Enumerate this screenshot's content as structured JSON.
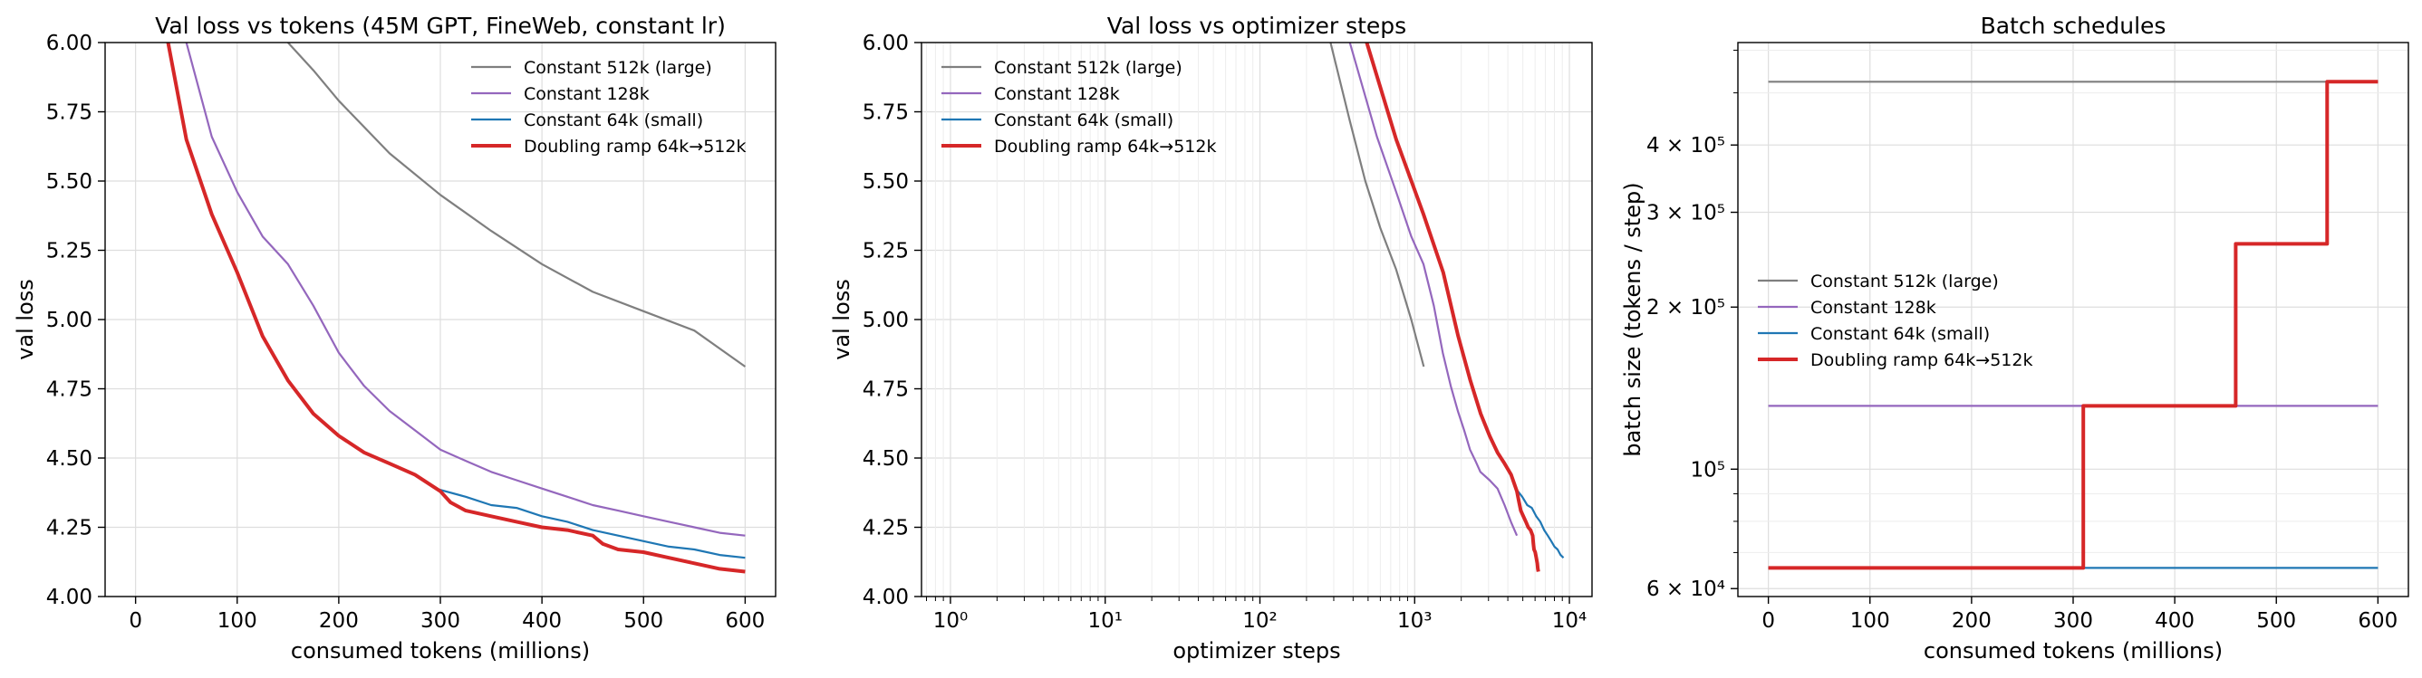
{
  "chart_data": [
    {
      "type": "line",
      "title": "Val loss vs tokens (45M GPT, FineWeb, constant lr)",
      "xlabel": "consumed tokens (millions)",
      "ylabel": "val loss",
      "xlim": [
        -30,
        630
      ],
      "ylim": [
        4.0,
        6.0
      ],
      "xscale": "linear",
      "yscale": "linear",
      "xticks": [
        0,
        100,
        200,
        300,
        400,
        500,
        600
      ],
      "xtick_labels": [
        "0",
        "100",
        "200",
        "300",
        "400",
        "500",
        "600"
      ],
      "yticks": [
        4.0,
        4.25,
        4.5,
        4.75,
        5.0,
        5.25,
        5.5,
        5.75,
        6.0
      ],
      "ytick_labels": [
        "4.00",
        "4.25",
        "4.50",
        "4.75",
        "5.00",
        "5.25",
        "5.50",
        "5.75",
        "6.00"
      ],
      "grid": true,
      "legend_position": "top-right",
      "series": [
        {
          "name": "Constant 512k (large)",
          "color": "#7f7f7f",
          "width": 2.2,
          "x": [
            150,
            175,
            200,
            250,
            300,
            350,
            400,
            450,
            500,
            550,
            600
          ],
          "y": [
            6.0,
            5.9,
            5.79,
            5.6,
            5.45,
            5.32,
            5.2,
            5.1,
            5.03,
            4.96,
            4.83
          ]
        },
        {
          "name": "Constant 128k",
          "color": "#9467bd",
          "width": 2.2,
          "x": [
            50,
            75,
            100,
            125,
            150,
            175,
            200,
            225,
            250,
            275,
            300,
            325,
            350,
            375,
            400,
            425,
            450,
            475,
            500,
            525,
            550,
            575,
            600
          ],
          "y": [
            6.0,
            5.66,
            5.46,
            5.3,
            5.2,
            5.05,
            4.88,
            4.76,
            4.67,
            4.6,
            4.53,
            4.49,
            4.45,
            4.42,
            4.39,
            4.36,
            4.33,
            4.31,
            4.29,
            4.27,
            4.25,
            4.23,
            4.22
          ]
        },
        {
          "name": "Constant 64k (small)",
          "color": "#1f77b4",
          "width": 2.2,
          "x": [
            295,
            325,
            350,
            375,
            400,
            425,
            450,
            475,
            500,
            525,
            550,
            575,
            600
          ],
          "y": [
            4.39,
            4.36,
            4.33,
            4.32,
            4.29,
            4.27,
            4.24,
            4.22,
            4.2,
            4.18,
            4.17,
            4.15,
            4.14
          ]
        },
        {
          "name": "Doubling ramp 64k→512k",
          "color": "#d62728",
          "width": 4.0,
          "x": [
            32,
            50,
            75,
            100,
            125,
            150,
            175,
            200,
            225,
            250,
            275,
            300,
            310,
            325,
            350,
            375,
            400,
            425,
            450,
            460,
            475,
            500,
            525,
            550,
            575,
            600
          ],
          "y": [
            6.0,
            5.65,
            5.38,
            5.17,
            4.94,
            4.78,
            4.66,
            4.58,
            4.52,
            4.48,
            4.44,
            4.38,
            4.34,
            4.31,
            4.29,
            4.27,
            4.25,
            4.24,
            4.22,
            4.19,
            4.17,
            4.16,
            4.14,
            4.12,
            4.1,
            4.09
          ]
        }
      ]
    },
    {
      "type": "line",
      "title": "Val loss vs optimizer steps",
      "xlabel": "optimizer steps",
      "ylabel": "val loss",
      "xlim": [
        0.65,
        14000
      ],
      "ylim": [
        4.0,
        6.0
      ],
      "xscale": "log",
      "yscale": "linear",
      "xticks": [
        1,
        10,
        100,
        1000,
        10000
      ],
      "xtick_labels": [
        "10⁰",
        "10¹",
        "10²",
        "10³",
        "10⁴"
      ],
      "yticks": [
        4.0,
        4.25,
        4.5,
        4.75,
        5.0,
        5.25,
        5.5,
        5.75,
        6.0
      ],
      "ytick_labels": [
        "4.00",
        "4.25",
        "4.50",
        "4.75",
        "5.00",
        "5.25",
        "5.50",
        "5.75",
        "6.00"
      ],
      "grid": true,
      "legend_position": "top-left",
      "series": [
        {
          "name": "Constant 512k (large)",
          "color": "#7f7f7f",
          "width": 2.2,
          "x": [
            286,
            380,
            480,
            600,
            760,
            950,
            1145
          ],
          "y": [
            6.0,
            5.72,
            5.5,
            5.33,
            5.18,
            5.0,
            4.83
          ]
        },
        {
          "name": "Constant 128k",
          "color": "#9467bd",
          "width": 2.2,
          "x": [
            381,
            570,
            760,
            950,
            1140,
            1330,
            1520,
            1710,
            1900,
            2090,
            2280,
            2470,
            2660,
            3050,
            3430,
            3810,
            4190,
            4580
          ],
          "y": [
            6.0,
            5.66,
            5.46,
            5.3,
            5.2,
            5.05,
            4.88,
            4.76,
            4.67,
            4.6,
            4.53,
            4.49,
            4.45,
            4.42,
            4.39,
            4.33,
            4.27,
            4.22
          ]
        },
        {
          "name": "Constant 64k (small)",
          "color": "#1f77b4",
          "width": 2.2,
          "x": [
            4500,
            4960,
            5340,
            5720,
            6100,
            6480,
            6870,
            7250,
            7630,
            8010,
            8390,
            8770,
            9160
          ],
          "y": [
            4.39,
            4.36,
            4.33,
            4.32,
            4.29,
            4.27,
            4.24,
            4.22,
            4.2,
            4.18,
            4.17,
            4.15,
            4.14
          ]
        },
        {
          "name": "Doubling ramp 64k→512k",
          "color": "#d62728",
          "width": 4.0,
          "x": [
            490,
            760,
            1140,
            1530,
            1910,
            2290,
            2670,
            3050,
            3430,
            3810,
            4200,
            4580,
            4730,
            4850,
            5040,
            5230,
            5420,
            5610,
            5790,
            5850,
            5910,
            6010,
            6110,
            6200,
            6250,
            6300
          ],
          "y": [
            6.0,
            5.65,
            5.38,
            5.17,
            4.94,
            4.78,
            4.66,
            4.58,
            4.52,
            4.48,
            4.44,
            4.38,
            4.34,
            4.31,
            4.29,
            4.27,
            4.25,
            4.24,
            4.22,
            4.19,
            4.17,
            4.16,
            4.14,
            4.12,
            4.1,
            4.09
          ]
        }
      ]
    },
    {
      "type": "line",
      "title": "Batch schedules",
      "xlabel": "consumed tokens (millions)",
      "ylabel": "batch size (tokens / step)",
      "xlim": [
        -30,
        630
      ],
      "ylim": [
        58000,
        620000
      ],
      "xscale": "linear",
      "yscale": "log",
      "xticks": [
        0,
        100,
        200,
        300,
        400,
        500,
        600
      ],
      "xtick_labels": [
        "0",
        "100",
        "200",
        "300",
        "400",
        "500",
        "600"
      ],
      "yticks": [
        60000,
        100000,
        200000,
        300000,
        400000
      ],
      "ytick_labels": [
        "6 × 10⁴",
        "10⁵",
        "2 × 10⁵",
        "3 × 10⁵",
        "4 × 10⁵"
      ],
      "grid": true,
      "legend_position": "center-left",
      "series": [
        {
          "name": "Constant 512k (large)",
          "color": "#7f7f7f",
          "width": 2.2,
          "x": [
            0,
            600
          ],
          "y": [
            524288,
            524288
          ]
        },
        {
          "name": "Constant 128k",
          "color": "#9467bd",
          "width": 2.2,
          "x": [
            0,
            600
          ],
          "y": [
            131072,
            131072
          ]
        },
        {
          "name": "Constant 64k (small)",
          "color": "#1f77b4",
          "width": 2.2,
          "x": [
            0,
            600
          ],
          "y": [
            65536,
            65536
          ]
        },
        {
          "name": "Doubling ramp 64k→512k",
          "color": "#d62728",
          "width": 4.0,
          "x": [
            0,
            310,
            310,
            460,
            460,
            550,
            550,
            600
          ],
          "y": [
            65536,
            65536,
            131072,
            131072,
            262144,
            262144,
            524288,
            524288
          ]
        }
      ]
    }
  ]
}
